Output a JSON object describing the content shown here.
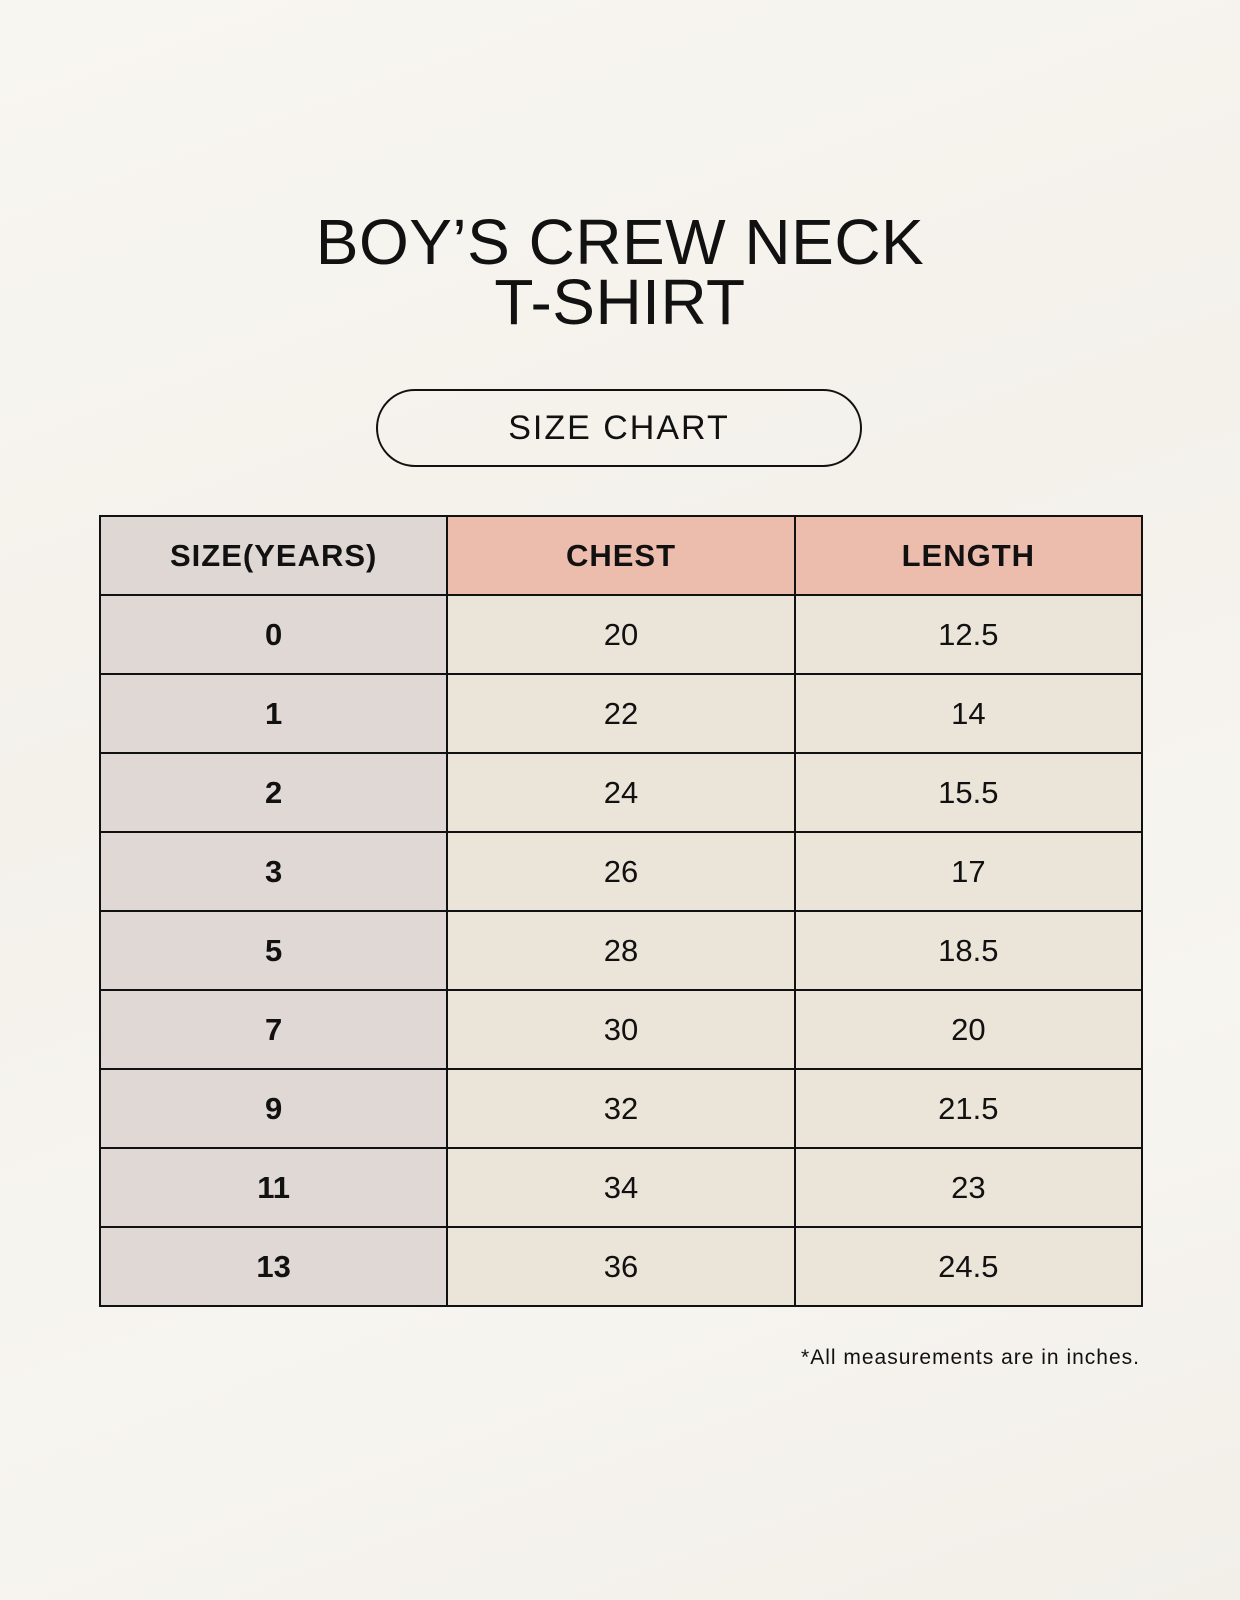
{
  "title_lines": [
    "BOY’S CREW NECK",
    "T-SHIRT"
  ],
  "subtitle": "SIZE CHART",
  "colors": {
    "header_size": "#dfd7d3",
    "header_measure": "#ecbcad",
    "cell_size": "#e0d8d4",
    "cell_measure": "#ebe4d9"
  },
  "table": {
    "headers": [
      "SIZE(YEARS)",
      "CHEST",
      "LENGTH"
    ],
    "rows": [
      [
        "0",
        "20",
        "12.5"
      ],
      [
        "1",
        "22",
        "14"
      ],
      [
        "2",
        "24",
        "15.5"
      ],
      [
        "3",
        "26",
        "17"
      ],
      [
        "5",
        "28",
        "18.5"
      ],
      [
        "7",
        "30",
        "20"
      ],
      [
        "9",
        "32",
        "21.5"
      ],
      [
        "11",
        "34",
        "23"
      ],
      [
        "13",
        "36",
        "24.5"
      ]
    ]
  },
  "footnote": "*All measurements are in inches."
}
